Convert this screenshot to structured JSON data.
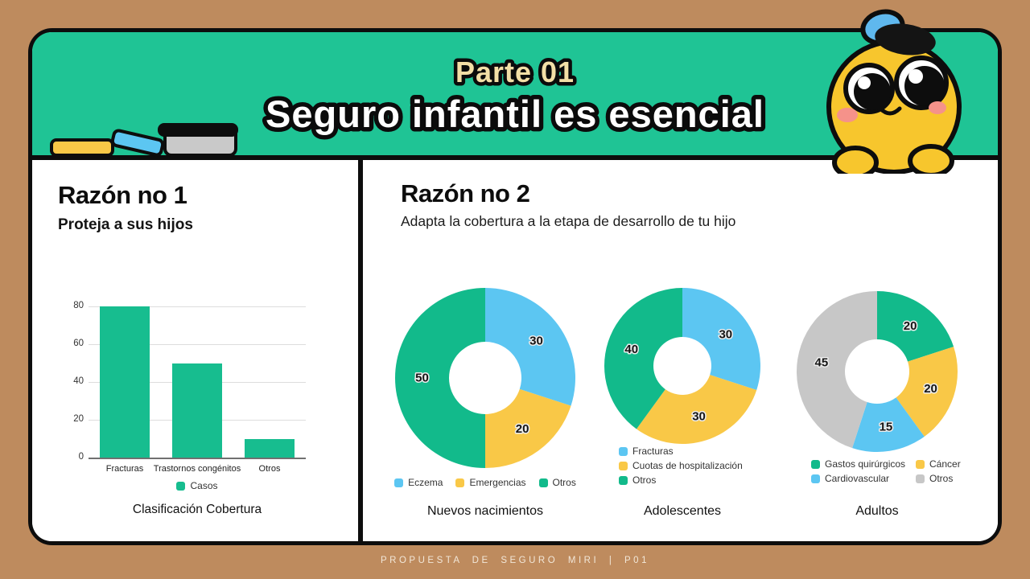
{
  "page": {
    "background_color": "#BE8B5E",
    "footer": "PROPUESTA DE SEGURO MIRI | P01"
  },
  "header": {
    "kicker": "Parte 01",
    "title": "Seguro infantil es esencial",
    "banner_color": "#1FC495",
    "kicker_color": "#F3DFA6",
    "title_color": "#FFFFFF"
  },
  "mascot": {
    "body_color": "#F7C62D",
    "cheek_color": "#F5928A",
    "beret_color": "#141414",
    "cap_color": "#5FB8EE"
  },
  "left_panel": {
    "heading": "Razón no 1",
    "subheading": "Proteja a sus hijos"
  },
  "right_panel": {
    "heading": "Razón no 2",
    "subheading": "Adapta la cobertura a la etapa de desarrollo de tu hijo"
  },
  "chart_data": [
    {
      "type": "bar",
      "title": "Clasificación Cobertura",
      "categories": [
        "Fracturas",
        "Trastornos congénitos",
        "Otros"
      ],
      "values": [
        80,
        50,
        10
      ],
      "series": "Casos",
      "ylim": [
        0,
        80
      ],
      "yticks": [
        0,
        20,
        40,
        60,
        80
      ],
      "grid": true,
      "bar_color": "#17BD8F",
      "legend_position": "bottom"
    },
    {
      "type": "pie",
      "donut": true,
      "title": "Nuevos nacimientos",
      "labels": [
        "Eczema",
        "Emergencias",
        "Otros"
      ],
      "values": [
        30,
        20,
        50
      ],
      "colors": [
        "#5CC6F2",
        "#F9C847",
        "#12BA8B"
      ],
      "start_angle_deg": 0,
      "direction": "clockwise",
      "legend_position": "bottom-row"
    },
    {
      "type": "pie",
      "donut": true,
      "title": "Adolescentes",
      "labels": [
        "Fracturas",
        "Cuotas de hospitalización",
        "Otros"
      ],
      "values": [
        30,
        30,
        40
      ],
      "colors": [
        "#5CC6F2",
        "#F9C847",
        "#12BA8B"
      ],
      "start_angle_deg": 0,
      "direction": "clockwise",
      "legend_position": "bottom-list"
    },
    {
      "type": "pie",
      "donut": true,
      "title": "Adultos",
      "labels": [
        "Gastos quirúrgicos",
        "Cáncer",
        "Cardiovascular",
        "Otros"
      ],
      "values": [
        20,
        20,
        15,
        45
      ],
      "colors": [
        "#12BA8B",
        "#F9C847",
        "#5CC6F2",
        "#C7C7C7"
      ],
      "start_angle_deg": 0,
      "direction": "clockwise",
      "legend_position": "bottom-grid"
    }
  ]
}
